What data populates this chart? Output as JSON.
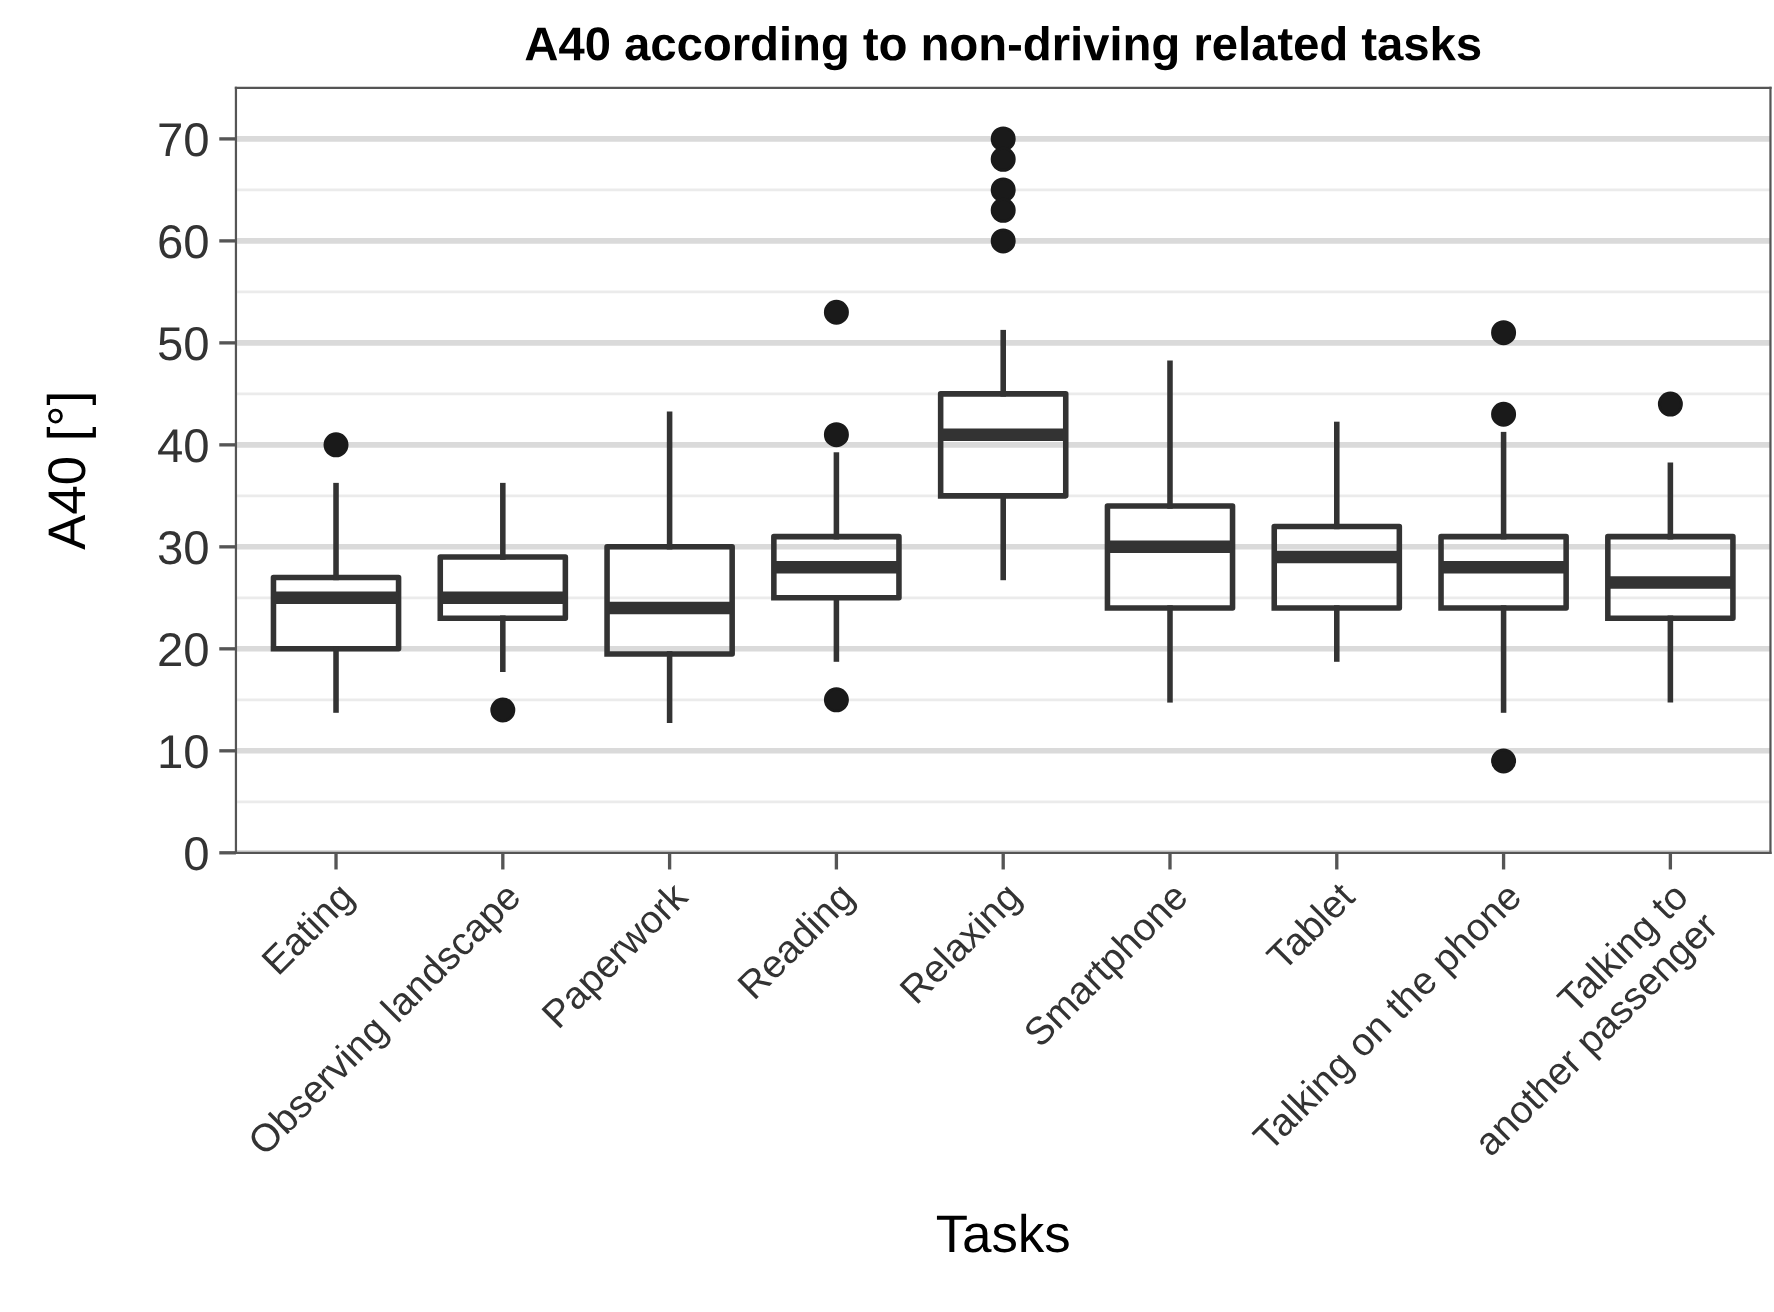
{
  "chart_data": {
    "type": "box",
    "title": "A40 according to non-driving related tasks",
    "xlabel": "Tasks",
    "ylabel": "A40 [°]",
    "categories": [
      "Eating",
      "Observing landscape",
      "Paperwork",
      "Reading",
      "Relaxing",
      "Smartphone",
      "Tablet",
      "Talking on the phone",
      "Talking to\nanother passenger"
    ],
    "boxes": [
      {
        "low": 14,
        "q1": 20,
        "median": 25,
        "q3": 27,
        "high": 36,
        "outliers": [
          40
        ]
      },
      {
        "low": 18,
        "q1": 23,
        "median": 25,
        "q3": 29,
        "high": 36,
        "outliers": [
          14
        ]
      },
      {
        "low": 13,
        "q1": 19.5,
        "median": 24,
        "q3": 30,
        "high": 43
      },
      {
        "low": 19,
        "q1": 25,
        "median": 28,
        "q3": 31,
        "high": 39,
        "outliers": [
          53,
          41,
          15
        ]
      },
      {
        "low": 27,
        "q1": 35,
        "median": 41,
        "q3": 45,
        "high": 51,
        "outliers": [
          70,
          68,
          65,
          63,
          60
        ]
      },
      {
        "low": 15,
        "q1": 24,
        "median": 30,
        "q3": 34,
        "high": 48
      },
      {
        "low": 19,
        "q1": 24,
        "median": 29,
        "q3": 32,
        "high": 42
      },
      {
        "low": 14,
        "q1": 24,
        "median": 28,
        "q3": 31,
        "high": 41,
        "outliers": [
          51,
          43,
          9
        ]
      },
      {
        "low": 15,
        "q1": 23,
        "median": 26.5,
        "q3": 31,
        "high": 38,
        "outliers": [
          44
        ]
      }
    ],
    "color": "#333333",
    "ylim": [
      0,
      75
    ],
    "yticks": [
      0,
      10,
      20,
      30,
      40,
      50,
      60,
      70
    ],
    "grid": "y"
  }
}
